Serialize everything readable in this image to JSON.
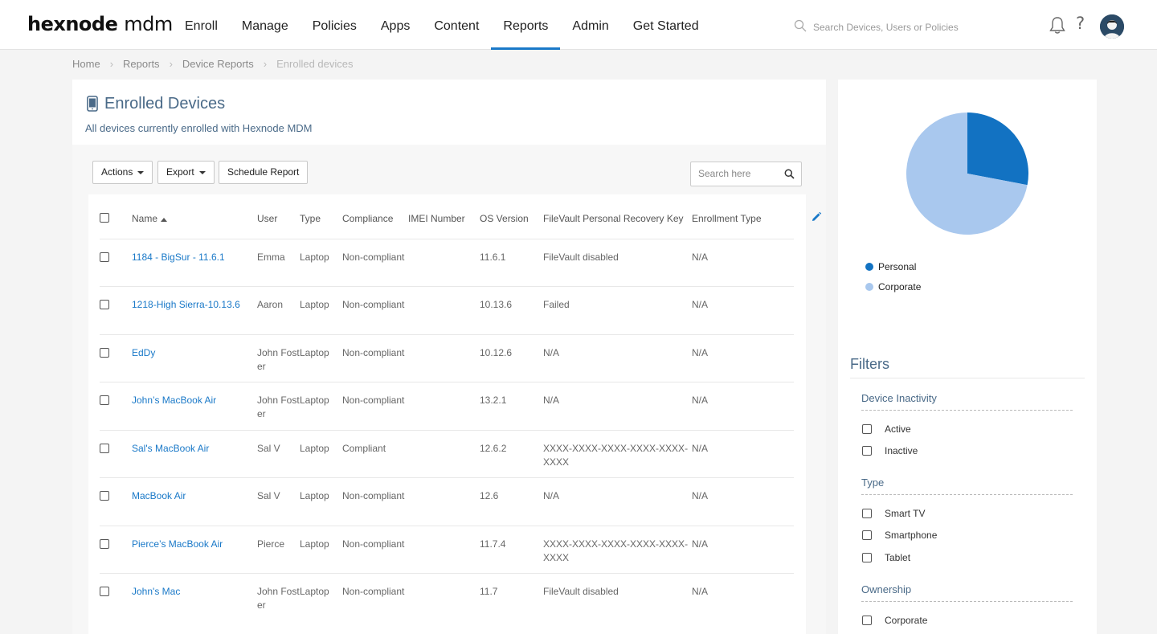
{
  "logo": {
    "brand": "hexnode",
    "product": "mdm"
  },
  "nav": [
    {
      "label": "Enroll"
    },
    {
      "label": "Manage"
    },
    {
      "label": "Policies"
    },
    {
      "label": "Apps"
    },
    {
      "label": "Content"
    },
    {
      "label": "Reports",
      "active": true
    },
    {
      "label": "Admin"
    },
    {
      "label": "Get Started"
    }
  ],
  "search": {
    "placeholder": "Search Devices, Users or Policies"
  },
  "header": {
    "help_label": "?"
  },
  "breadcrumb": [
    "Home",
    "Reports",
    "Device Reports",
    "Enrolled devices"
  ],
  "page": {
    "title": "Enrolled Devices",
    "subtitle": "All devices currently enrolled with Hexnode MDM"
  },
  "toolbar": {
    "actions_label": "Actions",
    "export_label": "Export",
    "schedule_label": "Schedule Report",
    "search_placeholder": "Search here"
  },
  "table": {
    "columns": [
      "Name",
      "User",
      "Type",
      "Compliance",
      "IMEI Number",
      "OS Version",
      "FileVault Personal Recovery Key",
      "Enrollment Type"
    ],
    "rows": [
      {
        "name": "1184 - BigSur - 11.6.1",
        "user": "Emma",
        "type": "Laptop",
        "compliance": "Non-compliant",
        "imei": "",
        "os": "11.6.1",
        "filevault": "FileVault disabled",
        "enrollment": "N/A"
      },
      {
        "name": "1218-High Sierra-10.13.6",
        "user": "Aaron",
        "type": "Laptop",
        "compliance": "Non-compliant",
        "imei": "",
        "os": "10.13.6",
        "filevault": "Failed",
        "enrollment": "N/A"
      },
      {
        "name": "EdDy",
        "user": "John Foster",
        "type": "Laptop",
        "compliance": "Non-compliant",
        "imei": "",
        "os": "10.12.6",
        "filevault": "N/A",
        "enrollment": "N/A"
      },
      {
        "name": "John’s MacBook Air",
        "user": "John Foster",
        "type": "Laptop",
        "compliance": "Non-compliant",
        "imei": "",
        "os": "13.2.1",
        "filevault": "N/A",
        "enrollment": "N/A"
      },
      {
        "name": "Sal's MacBook Air",
        "user": "Sal V",
        "type": "Laptop",
        "compliance": "Compliant",
        "imei": "",
        "os": "12.6.2",
        "filevault": "XXXX-XXXX-XXXX-XXXX-XXXX-XXXX",
        "enrollment": "N/A"
      },
      {
        "name": "MacBook Air",
        "user": "Sal V",
        "type": "Laptop",
        "compliance": "Non-compliant",
        "imei": "",
        "os": "12.6",
        "filevault": "N/A",
        "enrollment": "N/A"
      },
      {
        "name": "Pierce’s MacBook Air",
        "user": "Pierce",
        "type": "Laptop",
        "compliance": "Non-compliant",
        "imei": "",
        "os": "11.7.4",
        "filevault": "XXXX-XXXX-XXXX-XXXX-XXXX-XXXX",
        "enrollment": "N/A"
      },
      {
        "name": "John's Mac",
        "user": "John Foster",
        "type": "Laptop",
        "compliance": "Non-compliant",
        "imei": "",
        "os": "11.7",
        "filevault": "FileVault disabled",
        "enrollment": "N/A"
      }
    ]
  },
  "chart_data": {
    "type": "pie",
    "title": "",
    "slices": [
      {
        "label": "Personal",
        "value": 28,
        "color": "#1272c2"
      },
      {
        "label": "Corporate",
        "value": 72,
        "color": "#a9c8ee"
      }
    ]
  },
  "filters": {
    "title": "Filters",
    "groups": [
      {
        "title": "Device Inactivity",
        "options": [
          "Active",
          "Inactive"
        ]
      },
      {
        "title": "Type",
        "options": [
          "Smart TV",
          "Smartphone",
          "Tablet"
        ]
      },
      {
        "title": "Ownership",
        "options": [
          "Corporate"
        ]
      }
    ]
  },
  "colors": {
    "accent": "#1a79c8",
    "title": "#4a6a88"
  }
}
